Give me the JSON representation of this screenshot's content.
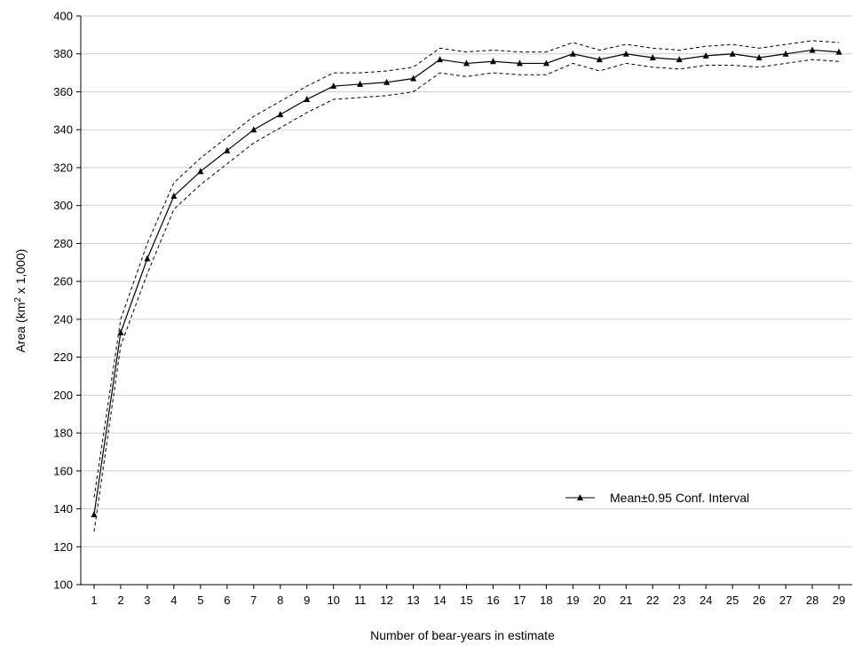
{
  "chart_data": {
    "type": "line",
    "xlabel": "Number of bear-years in estimate",
    "ylabel": {
      "prefix": "Area (km",
      "superscript": "2",
      "suffix": " x 1,000)"
    },
    "ylim": [
      100,
      400
    ],
    "yticks": [
      100,
      120,
      140,
      160,
      180,
      200,
      220,
      240,
      260,
      280,
      300,
      320,
      340,
      360,
      380,
      400
    ],
    "xlim": [
      0.5,
      29.5
    ],
    "x": [
      1,
      2,
      3,
      4,
      5,
      6,
      7,
      8,
      9,
      10,
      11,
      12,
      13,
      14,
      15,
      16,
      17,
      18,
      19,
      20,
      21,
      22,
      23,
      24,
      25,
      26,
      27,
      28,
      29
    ],
    "grid": "horizontal",
    "legend_position": "lower-right",
    "series": [
      {
        "name": "Mean±0.95 Conf. Interval",
        "values": [
          137,
          233,
          272,
          305,
          318,
          329,
          340,
          348,
          356,
          363,
          364,
          365,
          367,
          377,
          375,
          376,
          375,
          375,
          380,
          377,
          380,
          378,
          377,
          379,
          380,
          378,
          380,
          382,
          381
        ],
        "lower": [
          128,
          226,
          264,
          298,
          311,
          322,
          333,
          341,
          349,
          356,
          357,
          358,
          360,
          370,
          368,
          370,
          369,
          369,
          375,
          371,
          375,
          373,
          372,
          374,
          374,
          373,
          375,
          377,
          376
        ],
        "upper": [
          146,
          240,
          280,
          312,
          325,
          336,
          347,
          355,
          363,
          370,
          370,
          371,
          373,
          383,
          381,
          382,
          381,
          381,
          386,
          382,
          385,
          383,
          382,
          384,
          385,
          383,
          385,
          387,
          386
        ]
      }
    ]
  }
}
